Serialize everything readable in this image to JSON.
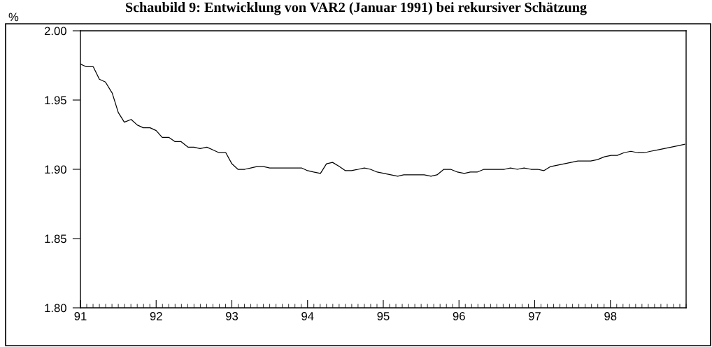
{
  "chart_data": {
    "type": "line",
    "title": "Schaubild 9: Entwicklung von VAR2 (Januar 1991) bei rekursiver Schätzung",
    "ylabel": "%",
    "x": [
      91.0,
      91.08,
      91.17,
      91.25,
      91.33,
      91.42,
      91.5,
      91.58,
      91.67,
      91.75,
      91.83,
      91.92,
      92.0,
      92.08,
      92.17,
      92.25,
      92.33,
      92.42,
      92.5,
      92.58,
      92.67,
      92.75,
      92.83,
      92.92,
      93.0,
      93.08,
      93.17,
      93.25,
      93.33,
      93.42,
      93.5,
      93.58,
      93.67,
      93.75,
      93.83,
      93.92,
      94.0,
      94.08,
      94.17,
      94.25,
      94.33,
      94.42,
      94.5,
      94.58,
      94.67,
      94.75,
      94.83,
      94.92,
      95.01,
      95.1,
      95.19,
      95.27,
      95.36,
      95.45,
      95.54,
      95.63,
      95.71,
      95.8,
      95.89,
      95.98,
      96.07,
      96.15,
      96.24,
      96.33,
      96.42,
      96.51,
      96.6,
      96.68,
      96.77,
      96.86,
      96.95,
      97.04,
      97.12,
      97.21,
      97.3,
      97.39,
      97.48,
      97.57,
      97.65,
      97.74,
      97.83,
      97.92,
      98.01,
      98.09,
      98.18,
      98.27,
      98.36,
      98.45,
      98.53,
      98.62,
      98.71,
      98.8,
      98.89,
      98.98
    ],
    "series": [
      {
        "color": "#000000",
        "values": [
          1.976,
          1.974,
          1.974,
          1.965,
          1.963,
          1.955,
          1.941,
          1.934,
          1.936,
          1.932,
          1.93,
          1.93,
          1.928,
          1.923,
          1.923,
          1.92,
          1.92,
          1.916,
          1.916,
          1.915,
          1.916,
          1.914,
          1.912,
          1.912,
          1.904,
          1.9,
          1.9,
          1.901,
          1.902,
          1.902,
          1.901,
          1.901,
          1.901,
          1.901,
          1.901,
          1.901,
          1.899,
          1.898,
          1.897,
          1.904,
          1.905,
          1.902,
          1.899,
          1.899,
          1.9,
          1.901,
          1.9,
          1.898,
          1.897,
          1.896,
          1.895,
          1.896,
          1.896,
          1.896,
          1.896,
          1.895,
          1.896,
          1.9,
          1.9,
          1.898,
          1.897,
          1.898,
          1.898,
          1.9,
          1.9,
          1.9,
          1.9,
          1.901,
          1.9,
          1.901,
          1.9,
          1.9,
          1.899,
          1.902,
          1.903,
          1.904,
          1.905,
          1.906,
          1.906,
          1.906,
          1.907,
          1.909,
          1.91,
          1.91,
          1.912,
          1.913,
          1.912,
          1.912,
          1.913,
          1.914,
          1.915,
          1.916,
          1.917,
          1.918
        ]
      }
    ],
    "xlim": [
      91,
      99
    ],
    "xticks": [
      91,
      92,
      93,
      94,
      95,
      96,
      97,
      98
    ],
    "ylim": [
      1.8,
      2.0
    ],
    "yticks": [
      {
        "value": 1.8,
        "label": "1.80"
      },
      {
        "value": 1.85,
        "label": "1.85"
      },
      {
        "value": 1.9,
        "label": "1.90"
      },
      {
        "value": 1.95,
        "label": "1.95"
      },
      {
        "value": 2.0,
        "label": "2.00"
      }
    ],
    "grid": false,
    "legend": false,
    "marker": "none",
    "line_style": "solid"
  }
}
